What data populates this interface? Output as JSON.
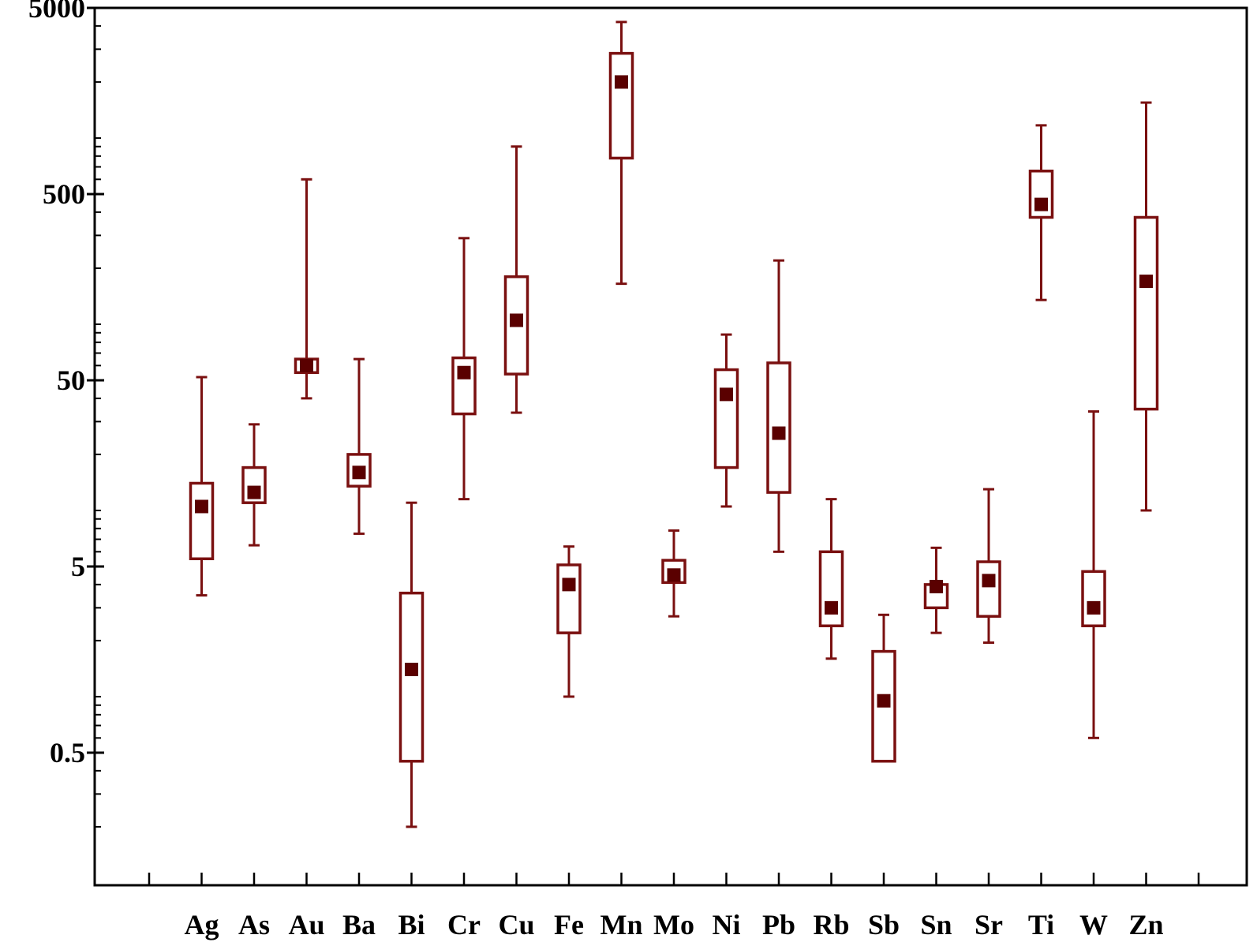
{
  "chart_data": {
    "type": "box",
    "title": "",
    "xlabel": "",
    "ylabel": "",
    "y_scale": "log",
    "ylim": [
      0.15,
      5000
    ],
    "y_ticks": [
      {
        "value": 0.5,
        "label": "0.5"
      },
      {
        "value": 5,
        "label": "5"
      },
      {
        "value": 50,
        "label": "50"
      },
      {
        "value": 500,
        "label": "500"
      },
      {
        "value": 5000,
        "label": "5000"
      }
    ],
    "grid": false,
    "legend": "none",
    "colors": {
      "box": "#7a1010",
      "marker": "#5a0000",
      "axis": "#000000"
    },
    "categories": [
      "Ag",
      "As",
      "Au",
      "Ba",
      "Bi",
      "Cr",
      "Cu",
      "Fe",
      "Mn",
      "Mo",
      "Ni",
      "Pb",
      "Rb",
      "Sb",
      "Sn",
      "Sr",
      "Ti",
      "W",
      "Zn"
    ],
    "boxes": [
      {
        "category": "Ag",
        "min": 3.5,
        "q1": 5.5,
        "median": 10.5,
        "q3": 14,
        "max": 52
      },
      {
        "category": "As",
        "min": 6.5,
        "q1": 11,
        "median": 12.5,
        "q3": 17,
        "max": 29
      },
      {
        "category": "Au",
        "min": 40,
        "q1": 55,
        "median": 60,
        "q3": 65,
        "max": 600
      },
      {
        "category": "Ba",
        "min": 7.5,
        "q1": 13.5,
        "median": 16,
        "q3": 20,
        "max": 65
      },
      {
        "category": "Bi",
        "min": 0.2,
        "q1": 0.45,
        "median": 1.4,
        "q3": 3.6,
        "max": 11
      },
      {
        "category": "Cr",
        "min": 11.5,
        "q1": 33,
        "median": 55,
        "q3": 66,
        "max": 290
      },
      {
        "category": "Cu",
        "min": 33.5,
        "q1": 54,
        "median": 105,
        "q3": 180,
        "max": 900
      },
      {
        "category": "Fe",
        "min": 1.0,
        "q1": 2.2,
        "median": 4.0,
        "q3": 5.1,
        "max": 6.4
      },
      {
        "category": "Mn",
        "min": 165,
        "q1": 780,
        "median": 2000,
        "q3": 2850,
        "max": 4200
      },
      {
        "category": "Mo",
        "min": 2.7,
        "q1": 4.1,
        "median": 4.5,
        "q3": 5.4,
        "max": 7.8
      },
      {
        "category": "Ni",
        "min": 10.5,
        "q1": 17,
        "median": 42,
        "q3": 57,
        "max": 88
      },
      {
        "category": "Pb",
        "min": 6.0,
        "q1": 12.5,
        "median": 26,
        "q3": 62,
        "max": 220
      },
      {
        "category": "Rb",
        "min": 1.6,
        "q1": 2.4,
        "median": 3.0,
        "q3": 6.0,
        "max": 11.5
      },
      {
        "category": "Sb",
        "min": 0.45,
        "q1": 0.45,
        "median": 0.95,
        "q3": 1.75,
        "max": 2.75
      },
      {
        "category": "Sn",
        "min": 2.2,
        "q1": 3.0,
        "median": 3.9,
        "q3": 4.0,
        "max": 6.3
      },
      {
        "category": "Sr",
        "min": 1.95,
        "q1": 2.7,
        "median": 4.2,
        "q3": 5.3,
        "max": 13
      },
      {
        "category": "Ti",
        "min": 135,
        "q1": 375,
        "median": 440,
        "q3": 665,
        "max": 1170
      },
      {
        "category": "W",
        "min": 0.6,
        "q1": 2.4,
        "median": 3.0,
        "q3": 4.7,
        "max": 34
      },
      {
        "category": "Zn",
        "min": 10,
        "q1": 35,
        "median": 170,
        "q3": 375,
        "max": 1550
      }
    ]
  }
}
